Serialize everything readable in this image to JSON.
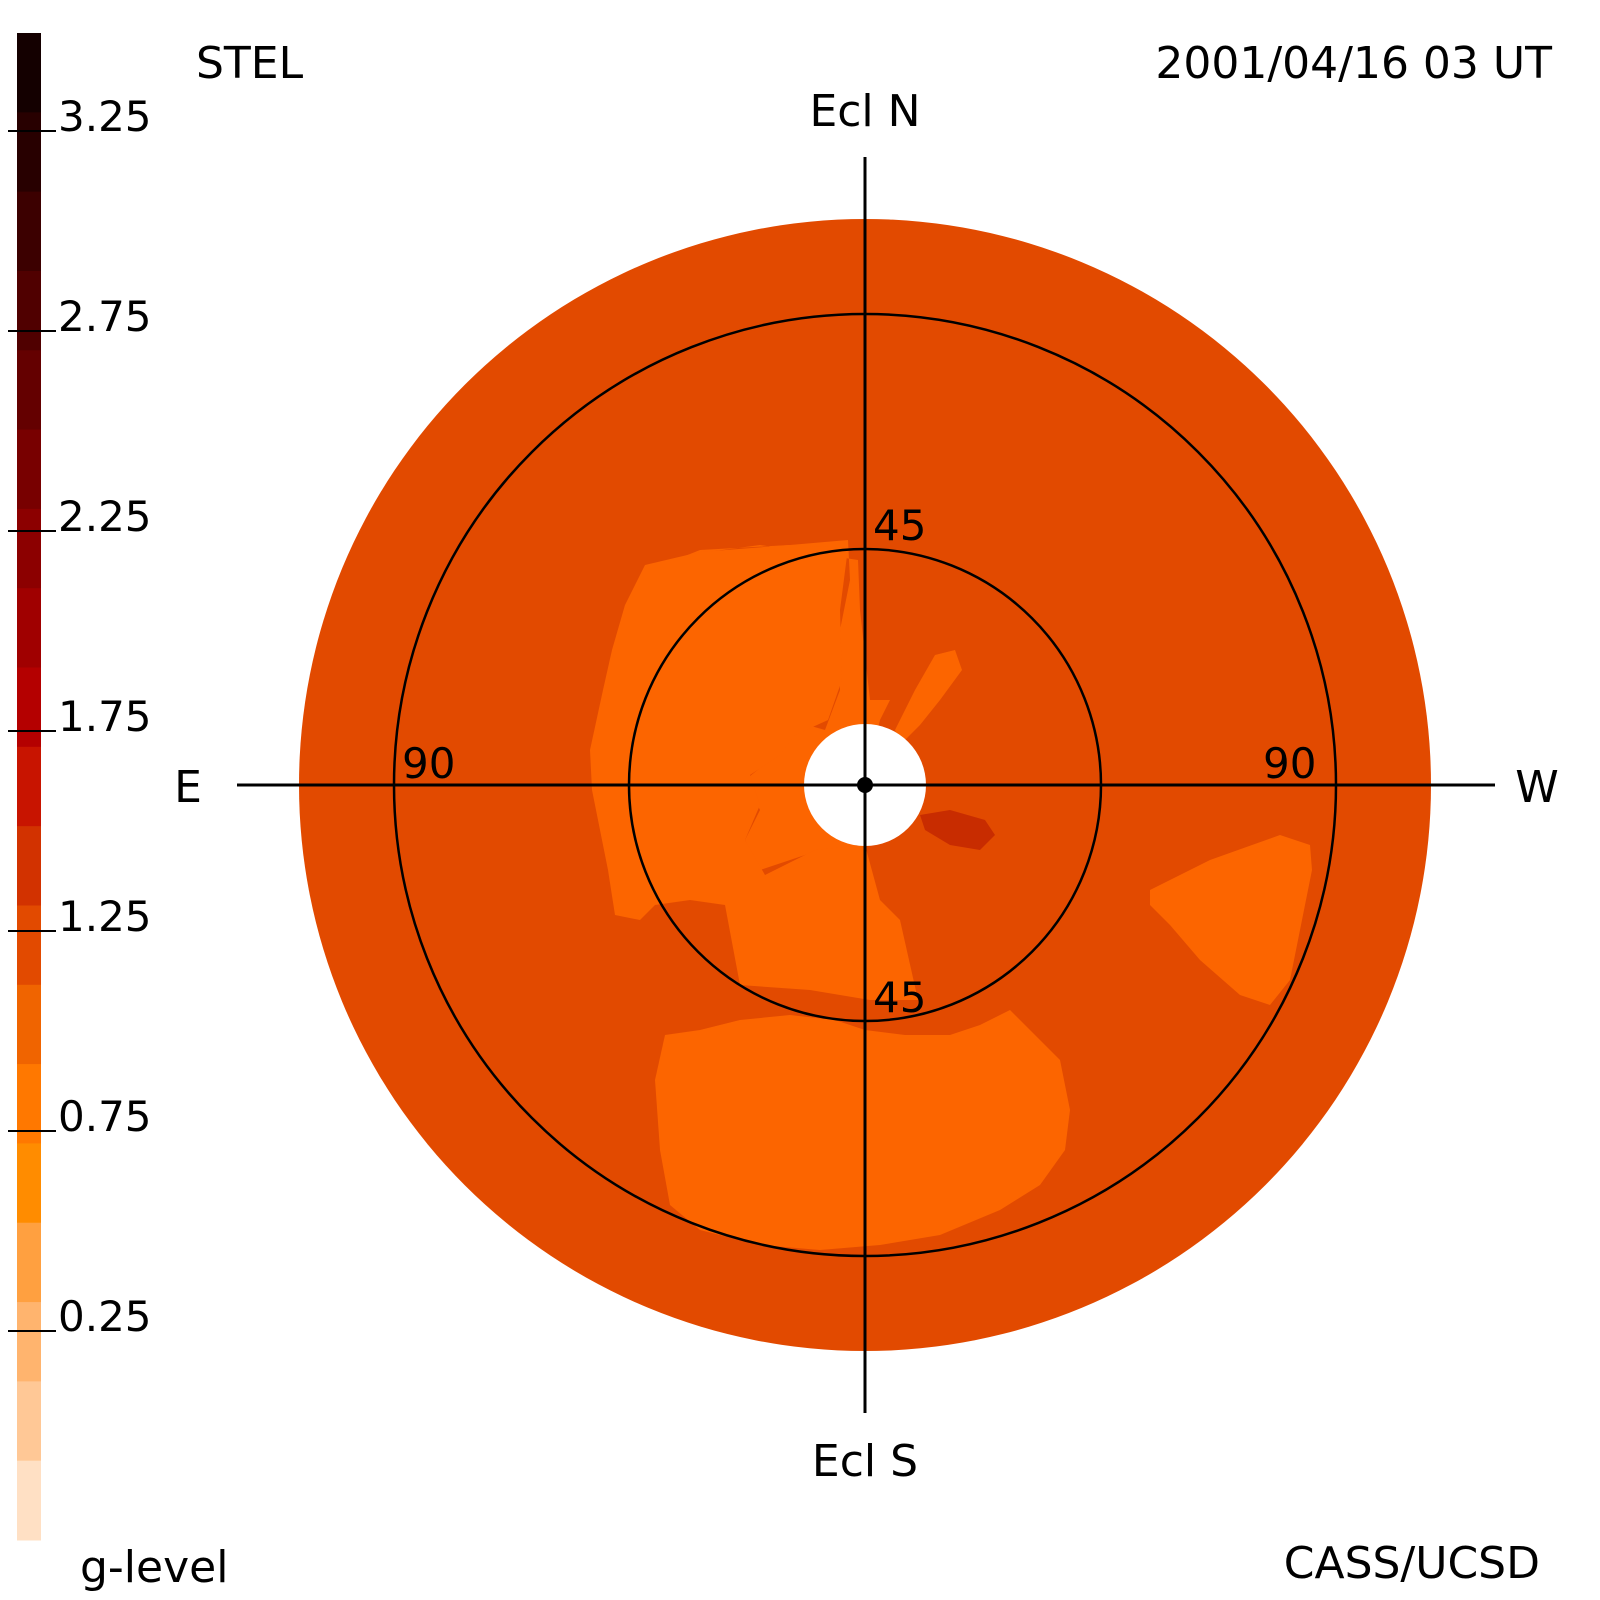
{
  "header": {
    "source": "STEL",
    "timestamp": "2001/04/16 03 UT",
    "credit": "CASS/UCSD"
  },
  "colorbar": {
    "title": "g-level",
    "tick_labels": [
      "3.25",
      "2.75",
      "2.25",
      "1.75",
      "1.25",
      "0.75",
      "0.25"
    ],
    "colors": [
      "#140000",
      "#280000",
      "#3c0000",
      "#500000",
      "#640000",
      "#780000",
      "#8c0000",
      "#a00000",
      "#b40000",
      "#c81400",
      "#d23200",
      "#e24a00",
      "#f06400",
      "#ff7800",
      "#ff8c00",
      "#ffa040",
      "#ffb46e",
      "#ffc896",
      "#ffe0c4"
    ]
  },
  "map": {
    "directions": {
      "north": "Ecl N",
      "south": "Ecl S",
      "east": "E",
      "west": "W"
    },
    "ring_labels": {
      "inner_top": "45",
      "inner_bottom": "45",
      "outer_left": "90",
      "outer_right": "90"
    },
    "colors": {
      "background_level": "#e24a00",
      "enhanced_level": "#fc6500",
      "high_level": "#c82c00",
      "center": "#ffffff",
      "lines": "#000000"
    }
  }
}
